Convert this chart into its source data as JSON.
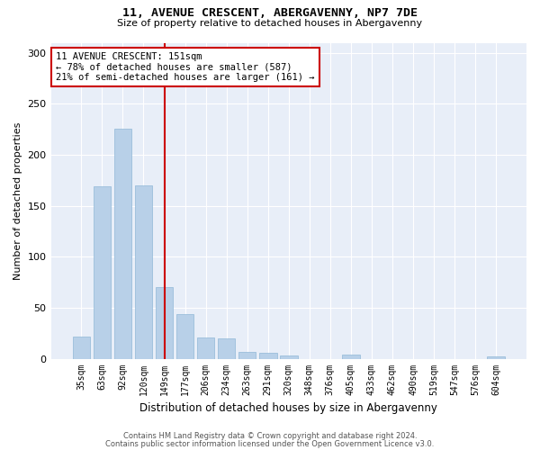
{
  "title1": "11, AVENUE CRESCENT, ABERGAVENNY, NP7 7DE",
  "title2": "Size of property relative to detached houses in Abergavenny",
  "xlabel": "Distribution of detached houses by size in Abergavenny",
  "ylabel": "Number of detached properties",
  "categories": [
    "35sqm",
    "63sqm",
    "92sqm",
    "120sqm",
    "149sqm",
    "177sqm",
    "206sqm",
    "234sqm",
    "263sqm",
    "291sqm",
    "320sqm",
    "348sqm",
    "376sqm",
    "405sqm",
    "433sqm",
    "462sqm",
    "490sqm",
    "519sqm",
    "547sqm",
    "576sqm",
    "604sqm"
  ],
  "values": [
    22,
    169,
    226,
    170,
    70,
    44,
    21,
    20,
    7,
    6,
    3,
    0,
    0,
    4,
    0,
    0,
    0,
    0,
    0,
    0,
    2
  ],
  "bar_color": "#b8d0e8",
  "bar_edge_color": "#90b8d8",
  "vline_x_idx": 4,
  "vline_color": "#cc0000",
  "annotation_text": "11 AVENUE CRESCENT: 151sqm\n← 78% of detached houses are smaller (587)\n21% of semi-detached houses are larger (161) →",
  "annotation_box_color": "#ffffff",
  "annotation_box_edge": "#cc0000",
  "ylim": [
    0,
    310
  ],
  "yticks": [
    0,
    50,
    100,
    150,
    200,
    250,
    300
  ],
  "background_color": "#e8eef8",
  "footer1": "Contains HM Land Registry data © Crown copyright and database right 2024.",
  "footer2": "Contains public sector information licensed under the Open Government Licence v3.0."
}
